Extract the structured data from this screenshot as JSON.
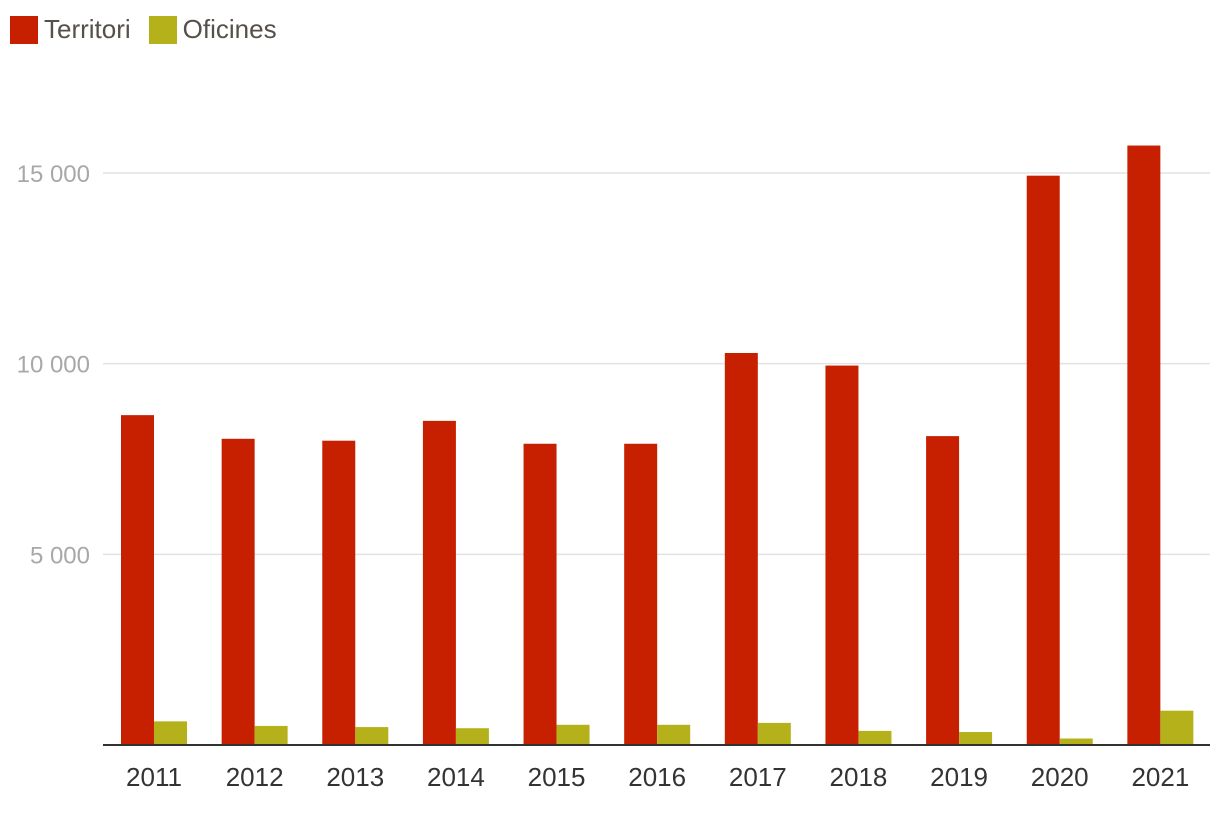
{
  "chart_data": {
    "type": "bar",
    "categories": [
      "2011",
      "2012",
      "2013",
      "2014",
      "2015",
      "2016",
      "2017",
      "2018",
      "2019",
      "2020",
      "2021"
    ],
    "series": [
      {
        "name": "Territori",
        "color": "#c62000",
        "values": [
          8650,
          8030,
          7980,
          8500,
          7900,
          7900,
          10280,
          9950,
          8100,
          14930,
          15720
        ]
      },
      {
        "name": "Oficines",
        "color": "#b5b11a",
        "values": [
          620,
          500,
          470,
          440,
          530,
          530,
          580,
          370,
          340,
          170,
          900
        ]
      }
    ],
    "yticks": [
      {
        "value": 5000,
        "label": "5 000"
      },
      {
        "value": 10000,
        "label": "10 000"
      },
      {
        "value": 15000,
        "label": "15 000"
      }
    ],
    "ylim": [
      0,
      16000
    ],
    "grid": true,
    "legend_position": "top-left",
    "title": "",
    "xlabel": "",
    "ylabel": ""
  }
}
